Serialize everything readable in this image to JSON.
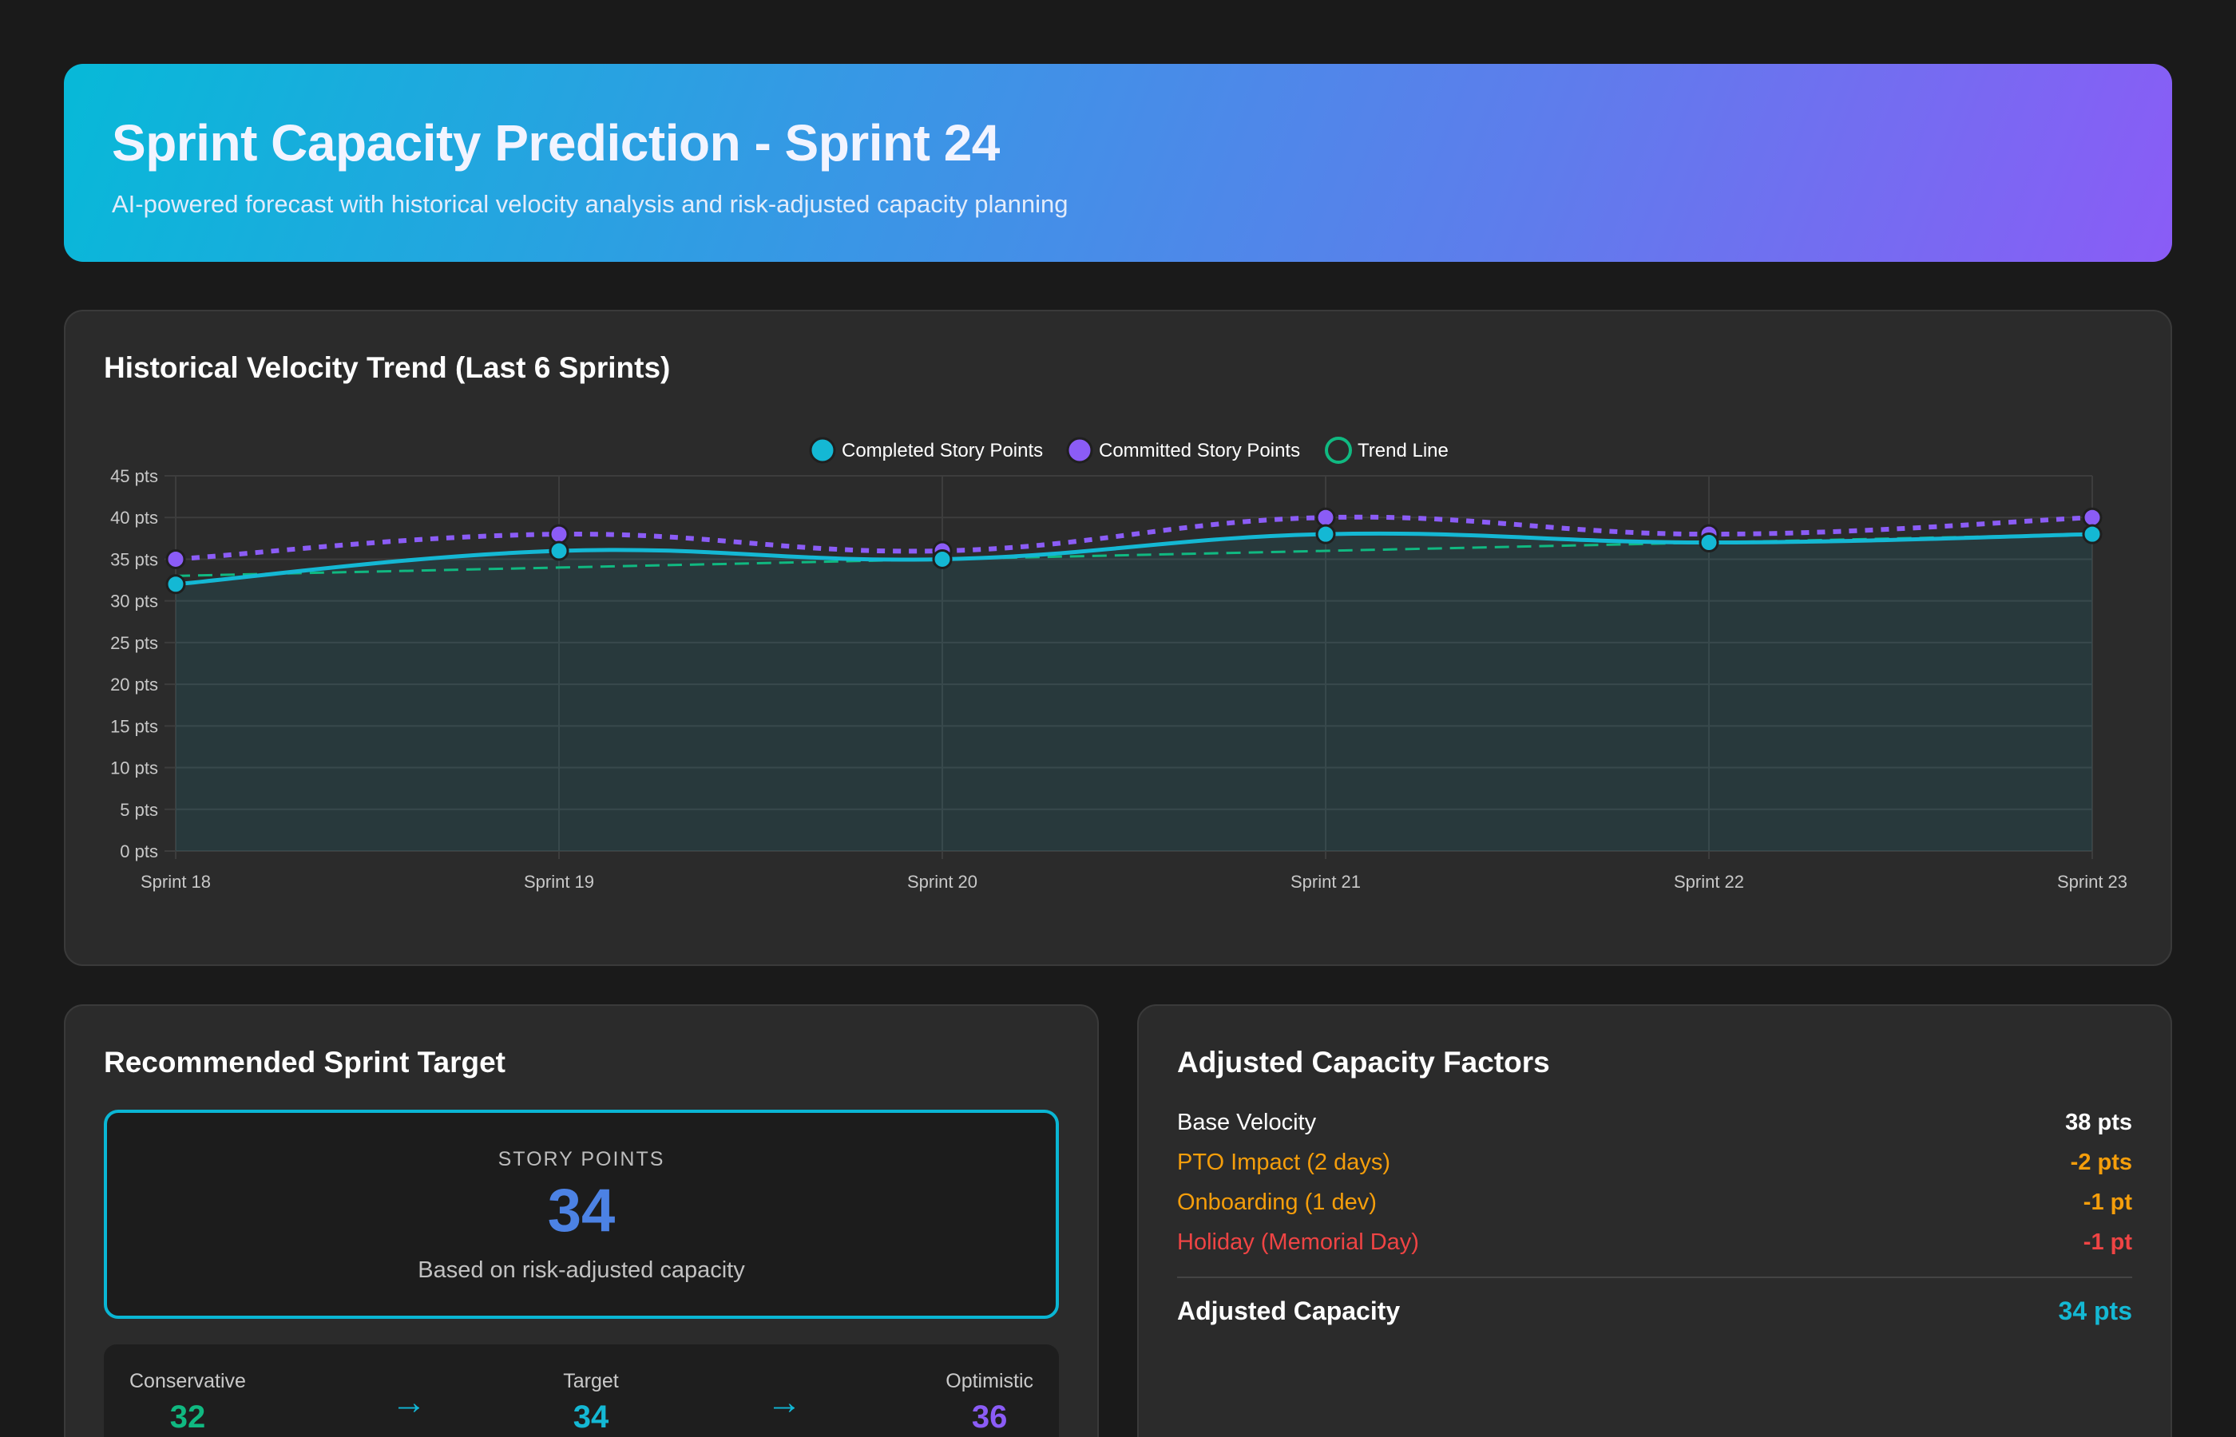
{
  "header": {
    "title": "Sprint Capacity Prediction - Sprint 24",
    "subtitle": "AI-powered forecast with historical velocity analysis and risk-adjusted capacity planning"
  },
  "chart_card": {
    "title": "Historical Velocity Trend (Last 6 Sprints)"
  },
  "chart_data": {
    "type": "line",
    "categories": [
      "Sprint 18",
      "Sprint 19",
      "Sprint 20",
      "Sprint 21",
      "Sprint 22",
      "Sprint 23"
    ],
    "series": [
      {
        "name": "Completed Story Points",
        "values": [
          32,
          36,
          35,
          38,
          37,
          38
        ],
        "color": "#14b8d4"
      },
      {
        "name": "Committed Story Points",
        "values": [
          35,
          38,
          36,
          40,
          38,
          40
        ],
        "color": "#8b5cf6"
      },
      {
        "name": "Trend Line",
        "values": [
          33,
          34,
          35,
          36,
          37,
          38
        ],
        "color": "#10b981"
      }
    ],
    "ylim": [
      0,
      45
    ],
    "y_ticks": [
      "0 pts",
      "5 pts",
      "10 pts",
      "15 pts",
      "20 pts",
      "25 pts",
      "30 pts",
      "35 pts",
      "40 pts",
      "45 pts"
    ],
    "legend": "top-center",
    "grid": true
  },
  "target_card": {
    "title": "Recommended Sprint Target",
    "label": "STORY POINTS",
    "value": "34",
    "note": "Based on risk-adjusted capacity",
    "range": [
      {
        "label": "Conservative",
        "value": "32",
        "color": "#10b981"
      },
      {
        "label": "Target",
        "value": "34",
        "color": "#14b8d4"
      },
      {
        "label": "Optimistic",
        "value": "36",
        "color": "#8b5cf6"
      }
    ]
  },
  "factors_card": {
    "title": "Adjusted Capacity Factors",
    "rows": [
      {
        "label": "Base Velocity",
        "value": "38 pts",
        "color": "#ffffff",
        "label_color": "#ffffff"
      },
      {
        "label": "PTO Impact (2 days)",
        "value": "-2 pts",
        "color": "#f59e0b",
        "label_color": "#f59e0b"
      },
      {
        "label": "Onboarding (1 dev)",
        "value": "-1 pt",
        "color": "#f59e0b",
        "label_color": "#f59e0b"
      },
      {
        "label": "Holiday (Memorial Day)",
        "value": "-1 pt",
        "color": "#ef4444",
        "label_color": "#ef4444"
      }
    ],
    "total_label": "Adjusted Capacity",
    "total_value": "34 pts",
    "total_color": "#14b8d4"
  }
}
